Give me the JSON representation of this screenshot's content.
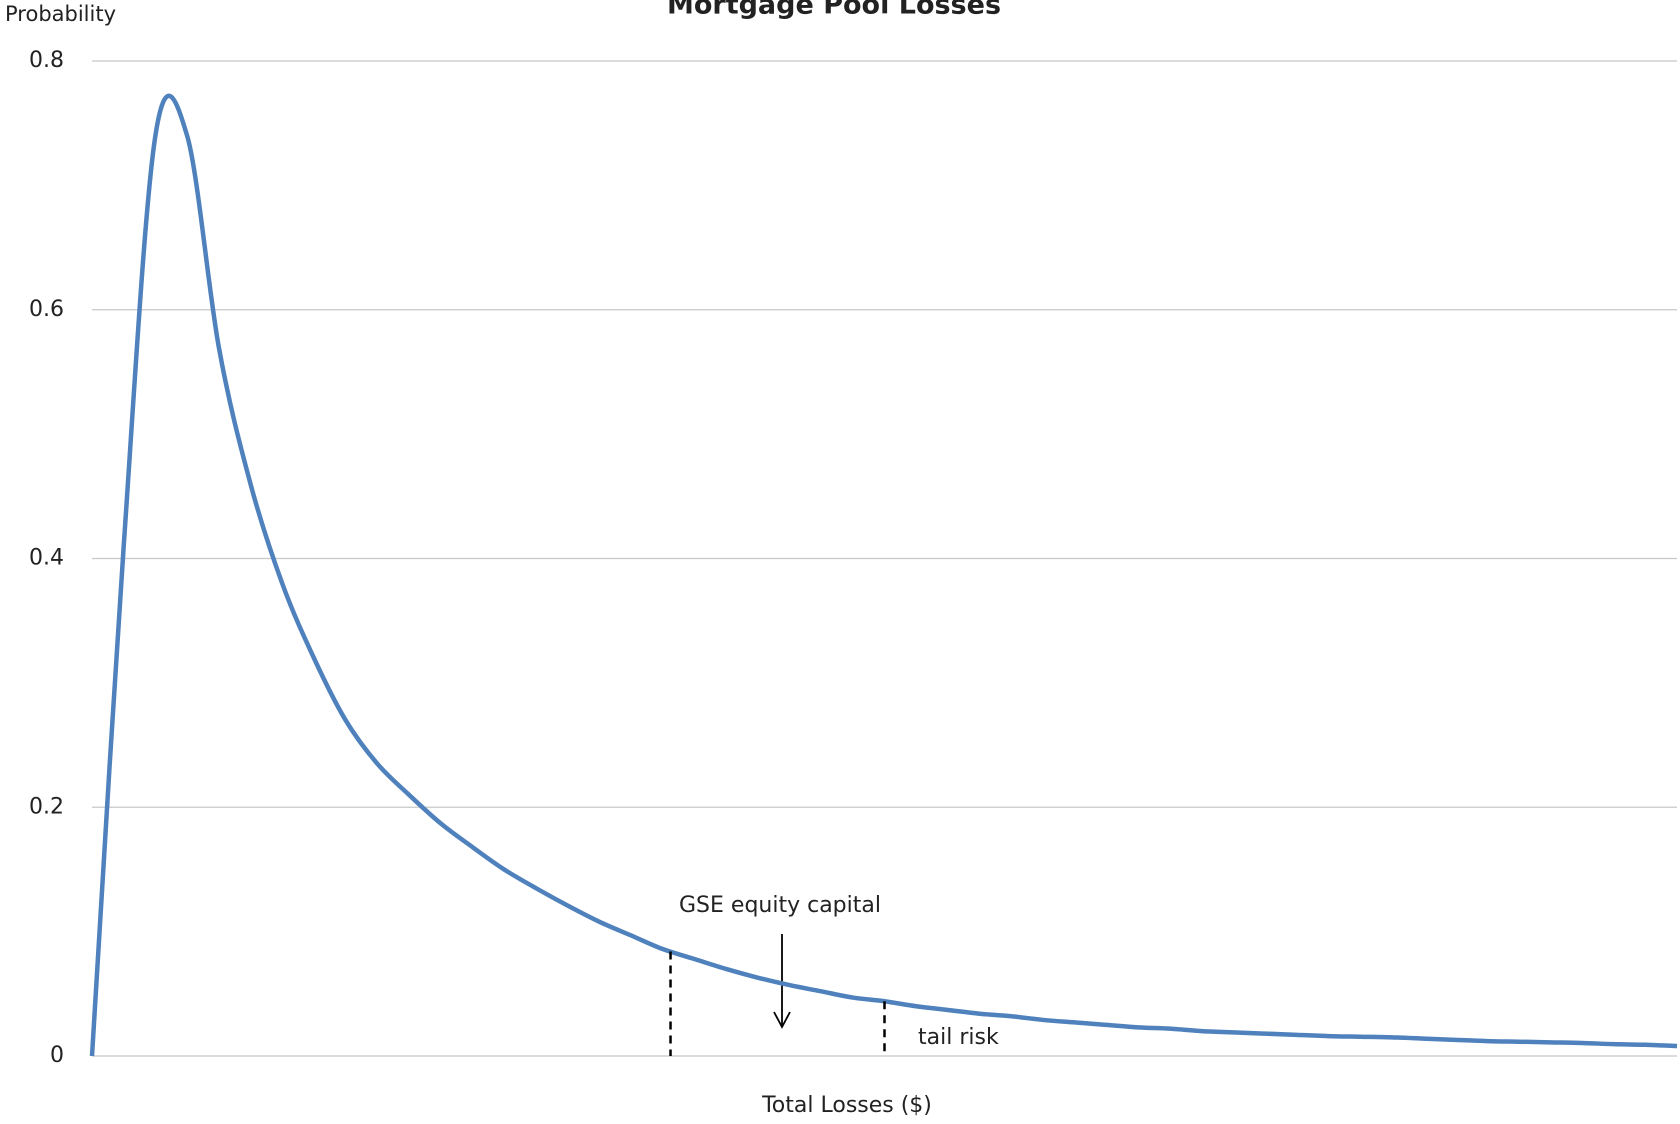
{
  "chart_data": {
    "type": "line",
    "title": "Mortgage Pool Losses",
    "y_label": "Probability",
    "x_label": "Total Losses ($)",
    "categories": [
      null,
      null,
      null,
      null,
      null,
      null,
      null,
      null,
      null,
      null,
      null,
      null,
      null,
      null,
      null,
      null,
      null,
      null,
      null,
      null,
      null,
      null,
      null,
      null,
      null,
      null,
      null,
      null,
      null,
      null,
      null,
      null,
      null,
      null,
      null,
      null,
      null,
      null,
      null,
      null,
      null,
      null,
      null,
      null,
      null,
      null,
      null,
      null,
      null,
      null,
      null
    ],
    "series": [
      {
        "color": "#4f81bd",
        "values": [
          0,
          0.41,
          0.74,
          0.74,
          0.57,
          0.46,
          0.38,
          0.32,
          0.27,
          0.235,
          0.21,
          0.187,
          0.168,
          0.15,
          0.135,
          0.121,
          0.108,
          0.097,
          0.086,
          0.078,
          0.07,
          0.063,
          0.057,
          0.052,
          0.047,
          0.044,
          0.04,
          0.037,
          0.034,
          0.032,
          0.029,
          0.027,
          0.025,
          0.023,
          0.022,
          0.02,
          0.019,
          0.018,
          0.017,
          0.016,
          0.0155,
          0.015,
          0.014,
          0.013,
          0.012,
          0.0115,
          0.011,
          0.0105,
          0.0095,
          0.009,
          0.008
        ]
      }
    ],
    "ylim": [
      0,
      0.8
    ],
    "yticks": [
      0,
      0.2,
      0.4,
      0.6,
      0.8
    ],
    "grid": true,
    "annotations": [
      {
        "text": "GSE equity capital"
      },
      {
        "text": "tail risk"
      }
    ],
    "capital_bounds": [
      0.084,
      0.044
    ]
  }
}
